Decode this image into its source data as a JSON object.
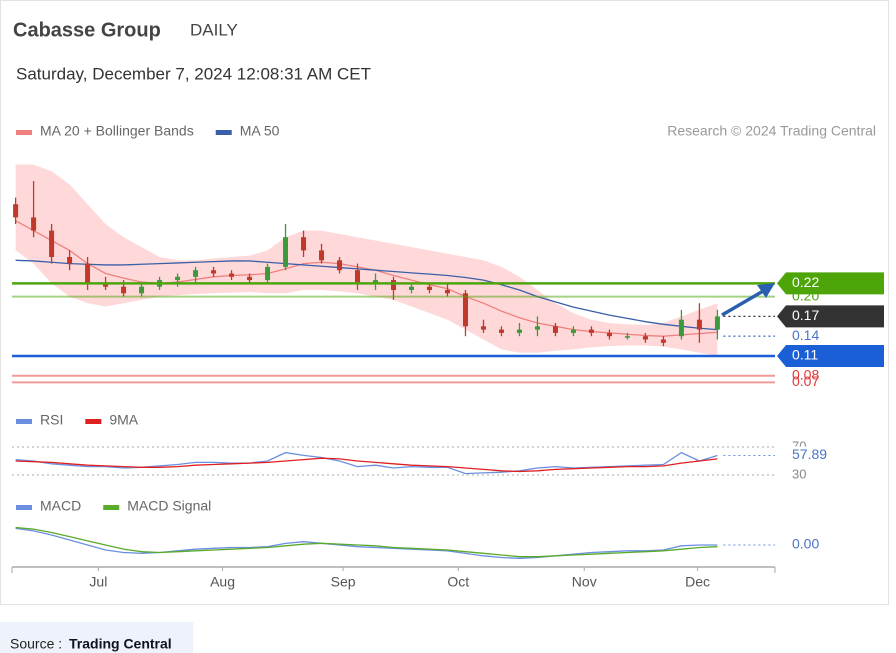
{
  "header": {
    "title": "Cabasse Group",
    "period": "DAILY",
    "timestamp": "Saturday, December 7, 2024 12:08:31 AM CET",
    "credit": "Research © 2024 Trading Central"
  },
  "footer": {
    "prefix": "Source :",
    "source": "Trading Central"
  },
  "chart_data": [
    {
      "type": "candlestick",
      "categories": [
        null,
        null,
        null,
        null,
        null,
        null,
        null,
        null,
        null,
        null,
        null,
        null,
        null,
        null,
        null,
        null,
        null,
        null,
        null,
        null,
        null,
        null,
        null,
        null,
        null,
        null,
        null,
        null,
        null,
        null,
        null,
        null,
        null,
        null,
        null,
        null,
        null,
        null,
        null,
        null
      ],
      "open": [
        0.34,
        0.32,
        0.3,
        0.26,
        0.25,
        0.22,
        0.215,
        0.205,
        0.215,
        0.225,
        0.23,
        0.24,
        0.235,
        0.23,
        0.225,
        0.245,
        0.29,
        0.27,
        0.255,
        0.24,
        0.22,
        0.225,
        0.21,
        0.215,
        0.21,
        0.205,
        0.155,
        0.15,
        0.145,
        0.15,
        0.155,
        0.145,
        0.15,
        0.145,
        0.14,
        0.14,
        0.135,
        0.14,
        0.165,
        0.15
      ],
      "high": [
        0.35,
        0.375,
        0.31,
        0.27,
        0.26,
        0.23,
        0.225,
        0.22,
        0.23,
        0.235,
        0.245,
        0.245,
        0.24,
        0.235,
        0.25,
        0.31,
        0.3,
        0.28,
        0.26,
        0.25,
        0.235,
        0.23,
        0.22,
        0.22,
        0.22,
        0.21,
        0.165,
        0.155,
        0.16,
        0.17,
        0.16,
        0.155,
        0.155,
        0.15,
        0.145,
        0.145,
        0.14,
        0.18,
        0.19,
        0.18
      ],
      "low": [
        0.31,
        0.29,
        0.25,
        0.24,
        0.21,
        0.21,
        0.2,
        0.2,
        0.21,
        0.215,
        0.22,
        0.23,
        0.225,
        0.22,
        0.22,
        0.24,
        0.26,
        0.25,
        0.235,
        0.21,
        0.21,
        0.195,
        0.205,
        0.205,
        0.2,
        0.14,
        0.145,
        0.14,
        0.14,
        0.14,
        0.14,
        0.14,
        0.14,
        0.135,
        0.135,
        0.13,
        0.125,
        0.135,
        0.13,
        0.135
      ],
      "close": [
        0.32,
        0.3,
        0.26,
        0.25,
        0.22,
        0.215,
        0.205,
        0.215,
        0.225,
        0.23,
        0.24,
        0.235,
        0.23,
        0.225,
        0.245,
        0.29,
        0.27,
        0.255,
        0.24,
        0.22,
        0.225,
        0.21,
        0.215,
        0.21,
        0.205,
        0.155,
        0.15,
        0.145,
        0.15,
        0.155,
        0.145,
        0.15,
        0.145,
        0.14,
        0.14,
        0.135,
        0.13,
        0.165,
        0.15,
        0.17
      ],
      "up_color": "#3c9a3c",
      "down_color": "#c0392b",
      "series": [
        {
          "name": "MA 20 + Bollinger Bands",
          "color": "#f08080",
          "values": [
            0.315,
            0.3,
            0.285,
            0.27,
            0.25,
            0.235,
            0.228,
            0.222,
            0.22,
            0.222,
            0.226,
            0.23,
            0.232,
            0.233,
            0.235,
            0.242,
            0.25,
            0.252,
            0.25,
            0.245,
            0.24,
            0.232,
            0.225,
            0.218,
            0.212,
            0.2,
            0.19,
            0.178,
            0.168,
            0.16,
            0.155,
            0.15,
            0.147,
            0.145,
            0.143,
            0.141,
            0.14,
            0.142,
            0.144,
            0.146
          ]
        },
        {
          "name": "MA 50",
          "color": "#3a5fa8",
          "values": [
            0.255,
            0.254,
            0.252,
            0.25,
            0.249,
            0.248,
            0.248,
            0.249,
            0.25,
            0.251,
            0.252,
            0.253,
            0.254,
            0.254,
            0.252,
            0.25,
            0.248,
            0.246,
            0.244,
            0.242,
            0.24,
            0.238,
            0.236,
            0.234,
            0.232,
            0.229,
            0.225,
            0.218,
            0.21,
            0.2,
            0.192,
            0.184,
            0.178,
            0.172,
            0.167,
            0.162,
            0.158,
            0.155,
            0.152,
            0.15
          ]
        }
      ],
      "bollinger": {
        "color": "#ffd9d9",
        "upper": [
          0.4,
          0.4,
          0.39,
          0.37,
          0.34,
          0.31,
          0.29,
          0.275,
          0.26,
          0.255,
          0.255,
          0.258,
          0.26,
          0.262,
          0.27,
          0.29,
          0.3,
          0.3,
          0.295,
          0.29,
          0.285,
          0.28,
          0.275,
          0.27,
          0.265,
          0.26,
          0.255,
          0.245,
          0.23,
          0.21,
          0.19,
          0.175,
          0.165,
          0.16,
          0.158,
          0.157,
          0.16,
          0.17,
          0.18,
          0.19
        ],
        "lower": [
          0.27,
          0.25,
          0.22,
          0.2,
          0.19,
          0.185,
          0.19,
          0.195,
          0.2,
          0.202,
          0.204,
          0.205,
          0.206,
          0.207,
          0.205,
          0.205,
          0.21,
          0.21,
          0.208,
          0.205,
          0.2,
          0.195,
          0.185,
          0.175,
          0.165,
          0.15,
          0.135,
          0.12,
          0.115,
          0.115,
          0.118,
          0.12,
          0.123,
          0.125,
          0.126,
          0.126,
          0.124,
          0.12,
          0.115,
          0.11
        ]
      },
      "levels": [
        {
          "value": 0.07,
          "label": "0.07",
          "color": "#e03a3a",
          "line": "solid",
          "box": false
        },
        {
          "value": 0.08,
          "label": "0.08",
          "color": "#e03a3a",
          "line": "solid",
          "box": false
        },
        {
          "value": 0.11,
          "label": "0.11",
          "color": "#1a5fd6",
          "line": "solid",
          "box": true
        },
        {
          "value": 0.14,
          "label": "0.14",
          "color": "#4a74c9",
          "line": "dotted",
          "box": false
        },
        {
          "value": 0.17,
          "label": "0.17",
          "color": "#333333",
          "line": "dotted",
          "box": true
        },
        {
          "value": 0.2,
          "label": "0.20",
          "color": "#4ea50a",
          "line": "solid",
          "box": false
        },
        {
          "value": 0.22,
          "label": "0.22",
          "color": "#4ea50a",
          "line": "solid",
          "box": true
        }
      ],
      "xlim": [
        -0.2,
        42.2
      ],
      "ylim": [
        0.06,
        0.41
      ],
      "xticks": [
        {
          "value": 4.6,
          "label": "Jul"
        },
        {
          "value": 11.5,
          "label": "Aug"
        },
        {
          "value": 18.2,
          "label": "Sep"
        },
        {
          "value": 24.6,
          "label": "Oct"
        },
        {
          "value": 31.6,
          "label": "Nov"
        },
        {
          "value": 37.9,
          "label": "Dec"
        }
      ]
    },
    {
      "type": "line",
      "series": [
        {
          "name": "RSI",
          "color": "#6b8fe0",
          "values": [
            52,
            50,
            46,
            44,
            42,
            42,
            40,
            41,
            43,
            45,
            48,
            48,
            47,
            47,
            50,
            62,
            58,
            55,
            50,
            42,
            44,
            40,
            42,
            41,
            41,
            32,
            33,
            34,
            36,
            40,
            42,
            40,
            41,
            42,
            43,
            44,
            45,
            62,
            50,
            57.89
          ]
        },
        {
          "name": "9MA",
          "color": "#e02020",
          "values": [
            50,
            49,
            48,
            46,
            44,
            43,
            42,
            41,
            41,
            42,
            44,
            45,
            46,
            47,
            48,
            50,
            52,
            54,
            53,
            50,
            48,
            46,
            44,
            43,
            42,
            40,
            38,
            36,
            35,
            36,
            38,
            39,
            40,
            41,
            42,
            42,
            43,
            47,
            50,
            53
          ]
        }
      ],
      "ylim": [
        20,
        80
      ],
      "yticks": [
        30,
        70
      ]
    },
    {
      "type": "line",
      "series": [
        {
          "name": "MACD",
          "color": "#6b8fe0",
          "values": [
            0.02,
            0.017,
            0.012,
            0.006,
            0.0,
            -0.006,
            -0.009,
            -0.01,
            -0.009,
            -0.007,
            -0.005,
            -0.004,
            -0.003,
            -0.003,
            -0.002,
            0.002,
            0.004,
            0.002,
            0.0,
            -0.002,
            -0.003,
            -0.004,
            -0.005,
            -0.006,
            -0.007,
            -0.01,
            -0.013,
            -0.015,
            -0.016,
            -0.015,
            -0.013,
            -0.011,
            -0.009,
            -0.008,
            -0.007,
            -0.007,
            -0.006,
            -0.001,
            0.0,
            0.0
          ],
          "last_label": "0.00"
        },
        {
          "name": "MACD Signal",
          "color": "#5aaa2a",
          "values": [
            0.021,
            0.019,
            0.015,
            0.01,
            0.005,
            0.0,
            -0.005,
            -0.008,
            -0.009,
            -0.008,
            -0.007,
            -0.006,
            -0.005,
            -0.004,
            -0.003,
            -0.001,
            0.001,
            0.002,
            0.001,
            0.0,
            -0.001,
            -0.003,
            -0.004,
            -0.005,
            -0.006,
            -0.008,
            -0.01,
            -0.012,
            -0.014,
            -0.014,
            -0.013,
            -0.012,
            -0.011,
            -0.01,
            -0.009,
            -0.008,
            -0.007,
            -0.005,
            -0.003,
            -0.002
          ]
        }
      ],
      "ylim": [
        -0.03,
        0.03
      ]
    }
  ]
}
